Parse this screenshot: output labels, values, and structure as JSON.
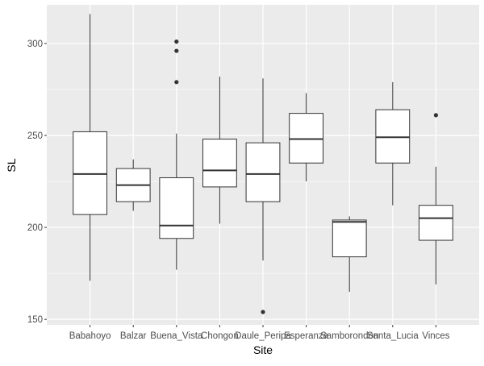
{
  "chart_data": {
    "type": "boxplot",
    "xlabel": "Site",
    "ylabel": "SL",
    "ylim": [
      147,
      321
    ],
    "yticks": [
      150,
      200,
      250,
      300
    ],
    "grid": true,
    "background": "#ebebeb",
    "box_fill": "#ffffff",
    "line_color": "#333333",
    "categories": [
      "Babahoyo",
      "Balzar",
      "Buena_Vista",
      "Chongon",
      "Daule_Peripa",
      "Esperanza",
      "Samborondon",
      "Santa_Lucia",
      "Vinces"
    ],
    "boxes": [
      {
        "whisker_low": 171,
        "q1": 207,
        "median": 229,
        "q3": 252,
        "whisker_high": 316,
        "outliers": []
      },
      {
        "whisker_low": 209,
        "q1": 214,
        "median": 223,
        "q3": 232,
        "whisker_high": 237,
        "outliers": []
      },
      {
        "whisker_low": 177,
        "q1": 194,
        "median": 201,
        "q3": 227,
        "whisker_high": 251,
        "outliers": [
          279,
          296,
          301
        ]
      },
      {
        "whisker_low": 202,
        "q1": 222,
        "median": 231,
        "q3": 248,
        "whisker_high": 282,
        "outliers": []
      },
      {
        "whisker_low": 182,
        "q1": 214,
        "median": 229,
        "q3": 246,
        "whisker_high": 281,
        "outliers": [
          154
        ]
      },
      {
        "whisker_low": 225,
        "q1": 235,
        "median": 248,
        "q3": 262,
        "whisker_high": 273,
        "outliers": []
      },
      {
        "whisker_low": 165,
        "q1": 184,
        "median": 203,
        "q3": 204,
        "whisker_high": 206,
        "outliers": []
      },
      {
        "whisker_low": 212,
        "q1": 235,
        "median": 249,
        "q3": 264,
        "whisker_high": 279,
        "outliers": []
      },
      {
        "whisker_low": 169,
        "q1": 193,
        "median": 205,
        "q3": 212,
        "whisker_high": 233,
        "outliers": [
          261
        ]
      }
    ]
  }
}
